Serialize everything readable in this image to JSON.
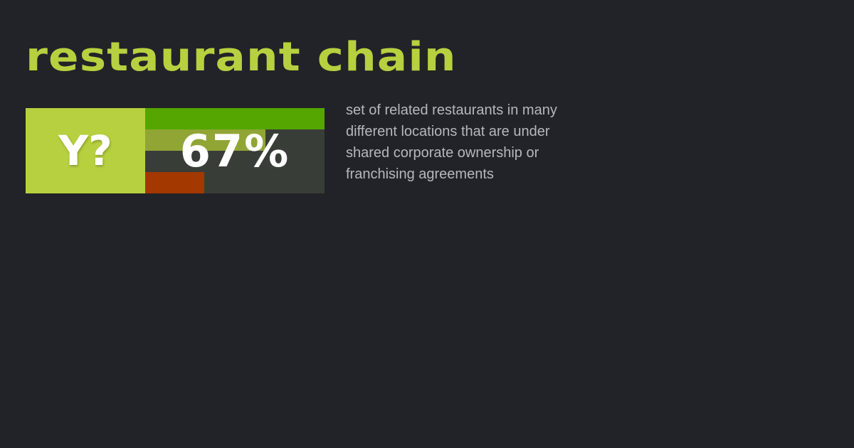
{
  "title": "restaurant chain",
  "badge": {
    "label": "Y?",
    "percent_text": "67%"
  },
  "bars": [
    {
      "fraction": 1.0,
      "color": "#55a600"
    },
    {
      "fraction": 0.67,
      "color": "#91a535"
    },
    {
      "fraction": 0.0,
      "color": "#91a535"
    },
    {
      "fraction": 0.33,
      "color": "#a33800"
    }
  ],
  "description": "set of related restaurants in many different locations that are under shared corporate ownership or franchising agreements"
}
